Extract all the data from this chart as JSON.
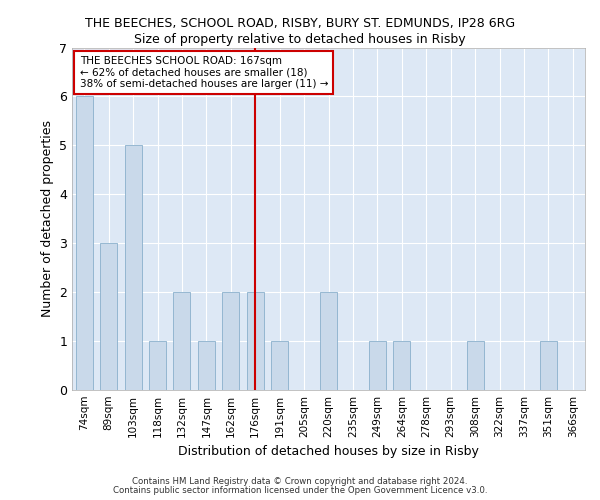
{
  "title1": "THE BEECHES, SCHOOL ROAD, RISBY, BURY ST. EDMUNDS, IP28 6RG",
  "title2": "Size of property relative to detached houses in Risby",
  "xlabel": "Distribution of detached houses by size in Risby",
  "ylabel": "Number of detached properties",
  "categories": [
    "74sqm",
    "89sqm",
    "103sqm",
    "118sqm",
    "132sqm",
    "147sqm",
    "162sqm",
    "176sqm",
    "191sqm",
    "205sqm",
    "220sqm",
    "235sqm",
    "249sqm",
    "264sqm",
    "278sqm",
    "293sqm",
    "308sqm",
    "322sqm",
    "337sqm",
    "351sqm",
    "366sqm"
  ],
  "values": [
    6,
    3,
    5,
    1,
    2,
    1,
    2,
    2,
    1,
    0,
    2,
    0,
    1,
    1,
    0,
    0,
    1,
    0,
    0,
    1,
    0
  ],
  "bar_color": "#c9d9ea",
  "bar_edge_color": "#8ab0cc",
  "red_line_x": 7,
  "red_line_label": "THE BEECHES SCHOOL ROAD: 167sqm",
  "annotation_line2": "← 62% of detached houses are smaller (18)",
  "annotation_line3": "38% of semi-detached houses are larger (11) →",
  "annotation_box_color": "white",
  "annotation_box_edge": "#cc0000",
  "red_line_color": "#cc0000",
  "ylim": [
    0,
    7
  ],
  "yticks": [
    0,
    1,
    2,
    3,
    4,
    5,
    6,
    7
  ],
  "background_color": "#dde8f5",
  "grid_color": "white",
  "footer1": "Contains HM Land Registry data © Crown copyright and database right 2024.",
  "footer2": "Contains public sector information licensed under the Open Government Licence v3.0."
}
